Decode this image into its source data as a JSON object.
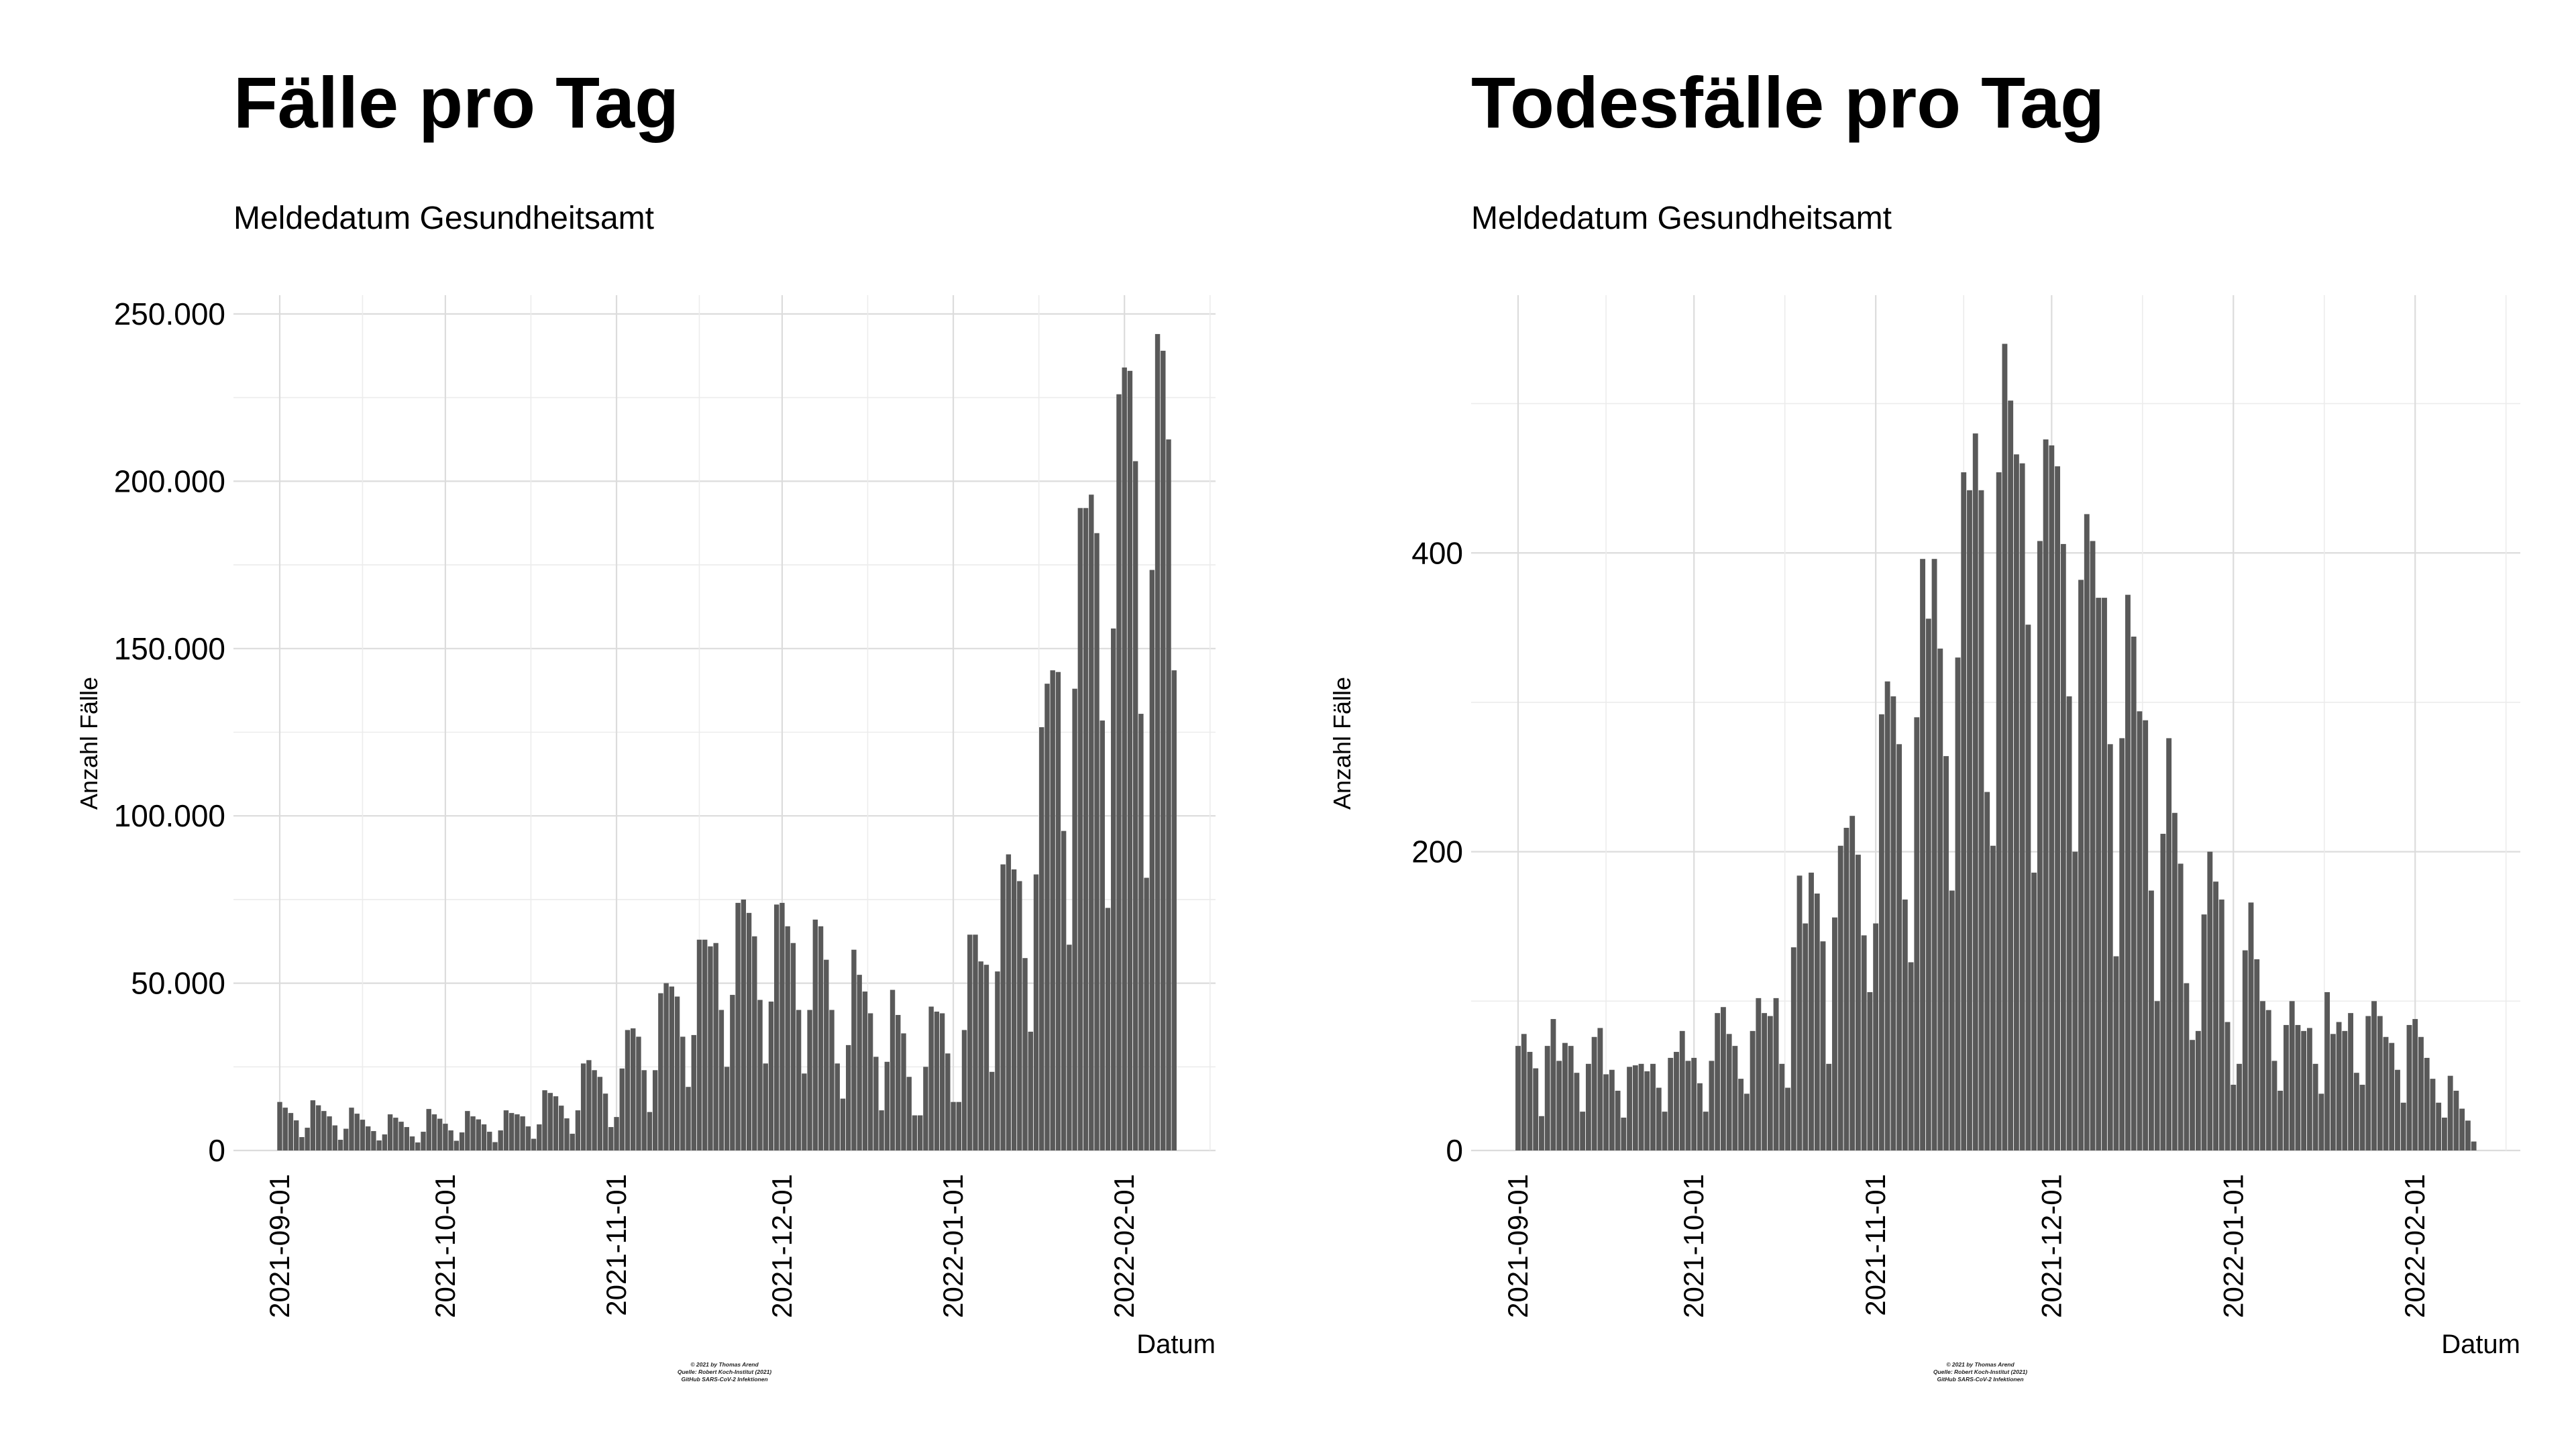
{
  "credits": {
    "line1": "© 2021 by Thomas Arend",
    "line2": "Quelle: Robert Koch-Institut (2021)",
    "line3": "GitHub SARS-CoV-2 Infektionen"
  },
  "chart_data": [
    {
      "type": "bar",
      "title": "Fälle pro Tag",
      "subtitle": "Meldedatum Gesundheitsamt",
      "xlabel": "Datum",
      "ylabel": "Anzahl Fälle",
      "x_start": "2021-09-01",
      "x_ticks": [
        "2021-09-01",
        "2021-10-01",
        "2021-11-01",
        "2021-12-01",
        "2022-01-01",
        "2022-02-01"
      ],
      "y_ticks": [
        0,
        50000,
        100000,
        150000,
        200000,
        250000
      ],
      "y_tick_labels": [
        "0",
        "50.000",
        "100.000",
        "150.000",
        "200.000",
        "250.000"
      ],
      "ylim": [
        0,
        250000
      ],
      "grid": true,
      "bar_color": "#595959",
      "values": [
        14500,
        12800,
        11200,
        9000,
        4000,
        6800,
        15000,
        13500,
        11800,
        10200,
        7500,
        3200,
        6500,
        12800,
        11000,
        9200,
        7200,
        5800,
        3000,
        4800,
        10800,
        9800,
        8600,
        7000,
        4200,
        2400,
        5600,
        12400,
        10800,
        9500,
        8000,
        6000,
        2900,
        5400,
        11800,
        10200,
        9300,
        7800,
        5600,
        2500,
        6000,
        12000,
        11200,
        10800,
        10200,
        7200,
        3500,
        7800,
        18000,
        17200,
        16200,
        13400,
        9600,
        5000,
        12000,
        26000,
        27000,
        24000,
        22000,
        17000,
        7000,
        10000,
        24500,
        36000,
        36500,
        34000,
        24000,
        11500,
        24000,
        47000,
        50000,
        49000,
        46000,
        34000,
        19000,
        34500,
        63000,
        63000,
        61000,
        62000,
        42000,
        25000,
        46500,
        74000,
        75000,
        71000,
        64000,
        45000,
        26000,
        44500,
        73500,
        74000,
        67000,
        62000,
        42000,
        23000,
        42000,
        69000,
        67000,
        57000,
        42000,
        26000,
        15500,
        31500,
        60000,
        52500,
        47500,
        41000,
        28000,
        12000,
        26500,
        48000,
        40500,
        35000,
        22000,
        10500,
        10500,
        25000,
        43000,
        41500,
        41000,
        29000,
        14500,
        14500,
        36000,
        64500,
        64500,
        56500,
        55500,
        23500,
        53500,
        85500,
        88500,
        84000,
        80500,
        57500,
        35500,
        82500,
        126500,
        139500,
        143500,
        143000,
        95500,
        61500,
        138000,
        192000,
        192000,
        196000,
        184500,
        128500,
        72500,
        156000,
        226000,
        234000,
        233000,
        206000,
        130500,
        81500,
        173500,
        244000,
        239000,
        212500,
        143500
      ]
    },
    {
      "type": "bar",
      "title": "Todesfälle pro Tag",
      "subtitle": "Meldedatum Gesundheitsamt",
      "xlabel": "Datum",
      "ylabel": "Anzahl Fälle",
      "x_start": "2021-09-01",
      "x_ticks": [
        "2021-09-01",
        "2021-10-01",
        "2021-11-01",
        "2021-12-01",
        "2022-01-01",
        "2022-02-01"
      ],
      "y_ticks": [
        0,
        200,
        400
      ],
      "y_tick_labels": [
        "0",
        "200",
        "400"
      ],
      "ylim": [
        0,
        560
      ],
      "grid": true,
      "bar_color": "#595959",
      "values": [
        70,
        78,
        66,
        55,
        23,
        70,
        88,
        60,
        72,
        70,
        52,
        26,
        58,
        76,
        82,
        51,
        54,
        40,
        22,
        56,
        57,
        58,
        53,
        58,
        42,
        26,
        62,
        66,
        80,
        60,
        62,
        45,
        26,
        60,
        92,
        96,
        78,
        70,
        48,
        38,
        80,
        102,
        92,
        90,
        102,
        58,
        42,
        136,
        184,
        152,
        186,
        172,
        140,
        58,
        156,
        204,
        216,
        224,
        198,
        144,
        106,
        152,
        292,
        314,
        304,
        272,
        168,
        126,
        290,
        396,
        356,
        396,
        336,
        264,
        174,
        330,
        454,
        442,
        480,
        442,
        240,
        204,
        454,
        540,
        502,
        466,
        460,
        352,
        186,
        408,
        476,
        472,
        458,
        406,
        304,
        200,
        382,
        426,
        408,
        370,
        370,
        272,
        130,
        276,
        372,
        344,
        294,
        288,
        174,
        100,
        212,
        276,
        226,
        192,
        112,
        74,
        80,
        158,
        200,
        180,
        168,
        86,
        44,
        58,
        134,
        166,
        128,
        100,
        94,
        60,
        40,
        84,
        100,
        84,
        80,
        82,
        58,
        38,
        106,
        78,
        86,
        80,
        92,
        52,
        44,
        90,
        100,
        90,
        76,
        72,
        54,
        32,
        84,
        88,
        76,
        62,
        48,
        32,
        22,
        50,
        40,
        28,
        20,
        6
      ]
    }
  ]
}
